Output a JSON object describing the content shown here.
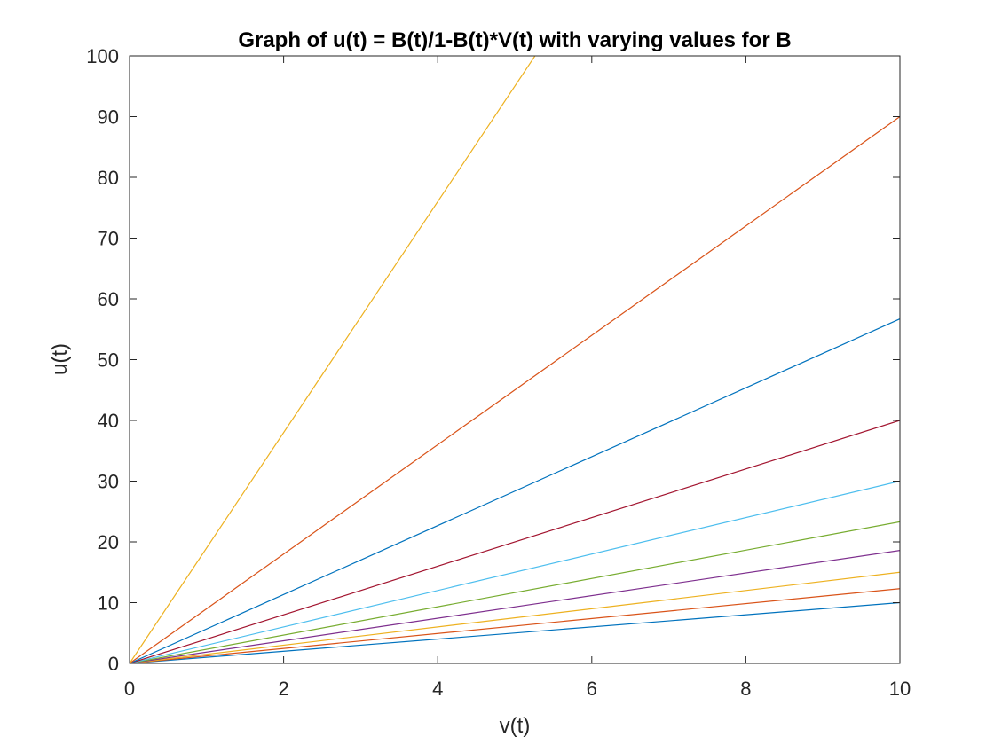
{
  "chart_data": {
    "type": "line",
    "title": "Graph of u(t) = B(t)/1-B(t)*V(t) with varying values for B",
    "xlabel": "v(t)",
    "ylabel": "u(t)",
    "xlim": [
      0,
      10
    ],
    "ylim": [
      0,
      100
    ],
    "xticks": [
      0,
      2,
      4,
      6,
      8,
      10
    ],
    "yticks": [
      0,
      10,
      20,
      30,
      40,
      50,
      60,
      70,
      80,
      90,
      100
    ],
    "grid": false,
    "legend": false,
    "series": [
      {
        "x": [
          0,
          10
        ],
        "y": [
          0,
          10.0
        ],
        "color": "#0072BD"
      },
      {
        "x": [
          0,
          10
        ],
        "y": [
          0,
          12.3
        ],
        "color": "#D95319"
      },
      {
        "x": [
          0,
          10
        ],
        "y": [
          0,
          15.0
        ],
        "color": "#EDB120"
      },
      {
        "x": [
          0,
          10
        ],
        "y": [
          0,
          18.6
        ],
        "color": "#7E2F8E"
      },
      {
        "x": [
          0,
          10
        ],
        "y": [
          0,
          23.3
        ],
        "color": "#77AC30"
      },
      {
        "x": [
          0,
          10
        ],
        "y": [
          0,
          30.0
        ],
        "color": "#4DBEEE"
      },
      {
        "x": [
          0,
          10
        ],
        "y": [
          0,
          40.0
        ],
        "color": "#A2142F"
      },
      {
        "x": [
          0,
          10
        ],
        "y": [
          0,
          56.7
        ],
        "color": "#0072BD"
      },
      {
        "x": [
          0,
          10
        ],
        "y": [
          0,
          90.0
        ],
        "color": "#D95319"
      },
      {
        "x": [
          0,
          10
        ],
        "y": [
          0,
          190.0
        ],
        "color": "#EDB120"
      }
    ]
  }
}
